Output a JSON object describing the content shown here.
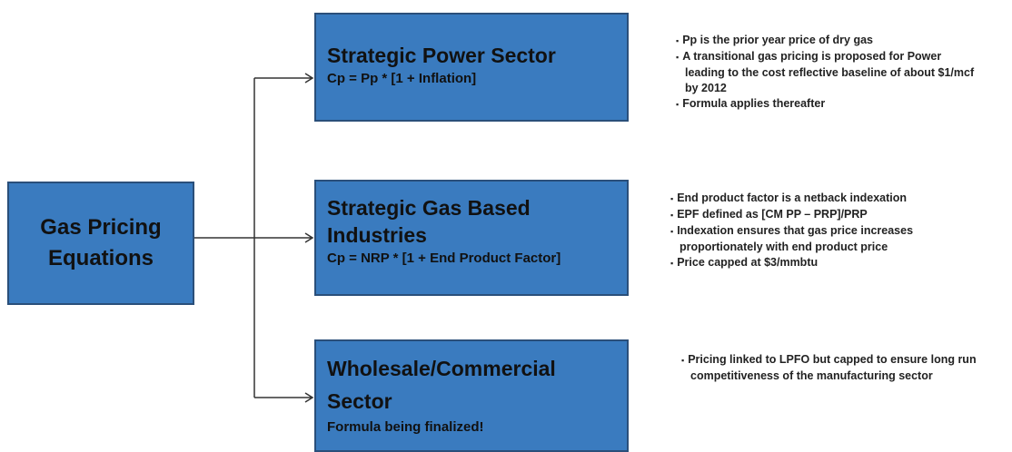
{
  "root": {
    "label": "Gas Pricing Equations"
  },
  "sectors": [
    {
      "title": "Strategic Power Sector",
      "formula": "Cp = Pp * [1 + Inflation]",
      "notes": [
        "Pp is the prior year price of dry gas",
        "A transitional gas pricing is proposed for Power leading to the cost reflective baseline of about $1/mcf by 2012",
        "Formula applies thereafter"
      ]
    },
    {
      "title": "Strategic Gas Based Industries",
      "formula": "Cp = NRP * [1 + End Product Factor]",
      "notes": [
        "End product factor is a netback indexation",
        "EPF defined as [CM PP – PRP]/PRP",
        "Indexation ensures that gas price increases proportionately with end product price",
        "Price capped at $3/mmbtu"
      ]
    },
    {
      "title": "Wholesale/Commercial Sector",
      "formula": "Formula being finalized!",
      "notes": [
        "Pricing linked to LPFO but capped to ensure long run competitiveness of the manufacturing sector"
      ]
    }
  ]
}
